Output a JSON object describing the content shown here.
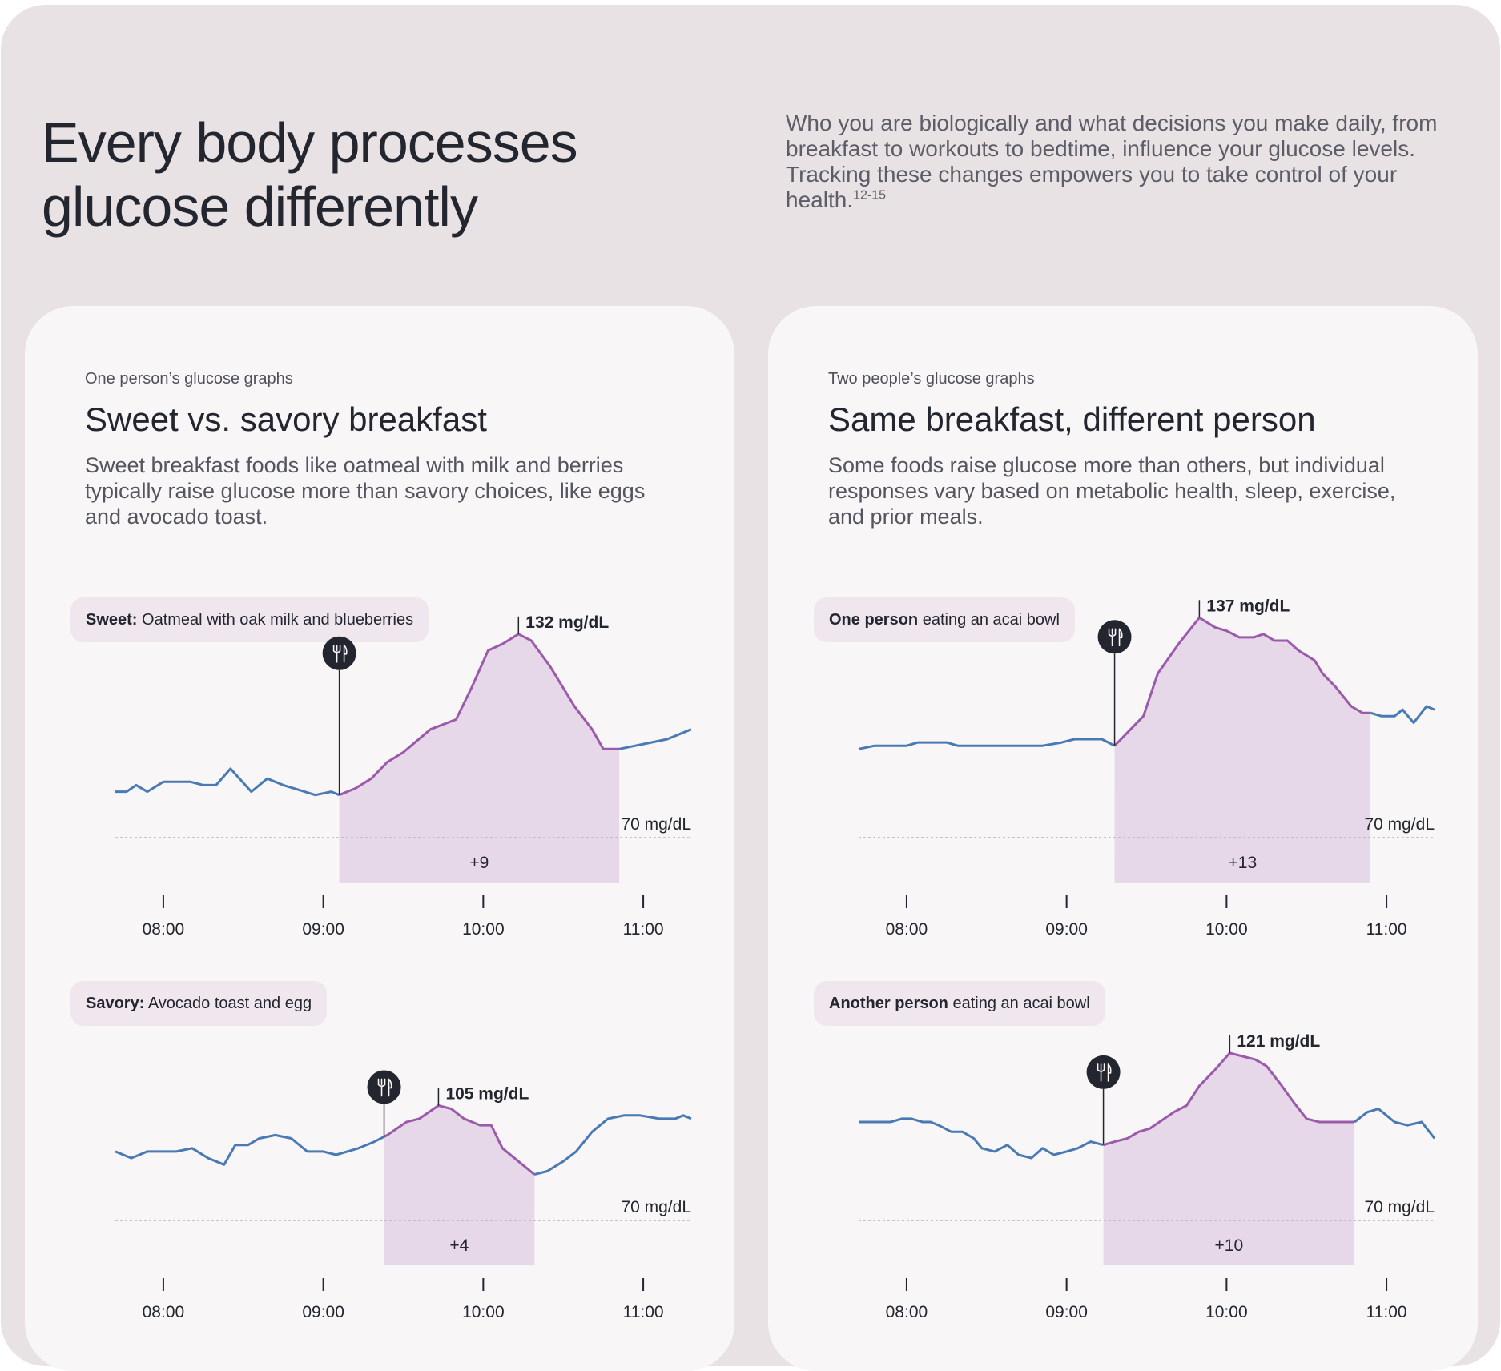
{
  "header": {
    "title_line1": "Every body processes",
    "title_line2": "glucose differently",
    "intro": "Who you are biologically and what decisions you make daily, from breakfast to workouts to bedtime, influence your glucose levels. Tracking these changes empowers you to take control of your health.",
    "intro_ref": "12-15"
  },
  "left_card": {
    "eyebrow": "One person’s glucose graphs",
    "title": "Sweet vs. savory breakfast",
    "description": "Sweet breakfast foods like oatmeal with milk and berries typically raise glucose more than savory choices, like eggs and avocado toast.",
    "chip_top": {
      "bold": "Sweet:",
      "text": " Oatmeal with oak milk and blueberries"
    },
    "chip_bottom": {
      "bold": "Savory:",
      "text": " Avocado toast and egg"
    }
  },
  "right_card": {
    "eyebrow": "Two people’s glucose graphs",
    "title": "Same breakfast, different person",
    "description": "Some foods raise glucose more than others, but individual responses vary based on metabolic health, sleep, exercise, and prior meals.",
    "chip_top": {
      "bold": "One person",
      "text": " eating an acai bowl"
    },
    "chip_bottom": {
      "bold": "Another person",
      "text": " eating an acai bowl"
    }
  },
  "colors": {
    "baseline_line": "#4a7ab3",
    "response_line": "#9b5aaa",
    "response_fill": "#e6d8e8",
    "marker": "#23252f"
  },
  "chart_data": [
    {
      "type": "line",
      "card": "left",
      "name": "sweet",
      "xlim": [
        7.7,
        11.3
      ],
      "ylim": [
        62,
        140
      ],
      "x_ticks": [
        8,
        9,
        10,
        11
      ],
      "x_tick_labels": [
        "08:00",
        "09:00",
        "10:00",
        "11:00"
      ],
      "reference_line": {
        "y": 70,
        "label": "70 mg/dL"
      },
      "meal_time": 9.1,
      "response_window": [
        9.1,
        10.85
      ],
      "peak": {
        "x": 10.22,
        "y": 132,
        "label": "132 mg/dL"
      },
      "area_label": "+9",
      "points": [
        [
          7.7,
          84
        ],
        [
          7.77,
          84
        ],
        [
          7.83,
          86
        ],
        [
          7.9,
          84
        ],
        [
          8.0,
          87
        ],
        [
          8.17,
          87
        ],
        [
          8.25,
          86
        ],
        [
          8.33,
          86
        ],
        [
          8.42,
          91
        ],
        [
          8.55,
          84
        ],
        [
          8.65,
          88
        ],
        [
          8.75,
          86
        ],
        [
          8.95,
          83
        ],
        [
          9.05,
          84
        ],
        [
          9.1,
          83
        ],
        [
          9.2,
          85
        ],
        [
          9.3,
          88
        ],
        [
          9.4,
          93
        ],
        [
          9.5,
          96
        ],
        [
          9.67,
          103
        ],
        [
          9.83,
          106
        ],
        [
          9.93,
          116
        ],
        [
          10.03,
          127
        ],
        [
          10.12,
          129
        ],
        [
          10.22,
          132
        ],
        [
          10.3,
          130
        ],
        [
          10.42,
          122
        ],
        [
          10.57,
          110
        ],
        [
          10.68,
          103
        ],
        [
          10.75,
          97
        ],
        [
          10.85,
          97
        ],
        [
          10.95,
          98
        ],
        [
          11.05,
          99
        ],
        [
          11.15,
          100
        ],
        [
          11.3,
          103
        ]
      ]
    },
    {
      "type": "line",
      "card": "left",
      "name": "savory",
      "xlim": [
        7.7,
        11.3
      ],
      "ylim": [
        62,
        140
      ],
      "x_ticks": [
        8,
        9,
        10,
        11
      ],
      "x_tick_labels": [
        "08:00",
        "09:00",
        "10:00",
        "11:00"
      ],
      "reference_line": {
        "y": 70,
        "label": "70 mg/dL"
      },
      "meal_time": 9.38,
      "response_window": [
        9.38,
        10.32
      ],
      "peak": {
        "x": 9.72,
        "y": 105,
        "label": "105 mg/dL"
      },
      "area_label": "+4",
      "points": [
        [
          7.7,
          91
        ],
        [
          7.8,
          89
        ],
        [
          7.9,
          91
        ],
        [
          8.0,
          91
        ],
        [
          8.08,
          91
        ],
        [
          8.18,
          92
        ],
        [
          8.28,
          89
        ],
        [
          8.38,
          87
        ],
        [
          8.45,
          93
        ],
        [
          8.53,
          93
        ],
        [
          8.6,
          95
        ],
        [
          8.7,
          96
        ],
        [
          8.8,
          95
        ],
        [
          8.9,
          91
        ],
        [
          9.0,
          91
        ],
        [
          9.08,
          90
        ],
        [
          9.15,
          91
        ],
        [
          9.22,
          92
        ],
        [
          9.32,
          94
        ],
        [
          9.4,
          96
        ],
        [
          9.52,
          100
        ],
        [
          9.6,
          101
        ],
        [
          9.72,
          105
        ],
        [
          9.8,
          104
        ],
        [
          9.88,
          101
        ],
        [
          9.98,
          99
        ],
        [
          10.05,
          99
        ],
        [
          10.12,
          92
        ],
        [
          10.22,
          88
        ],
        [
          10.32,
          84
        ],
        [
          10.4,
          85
        ],
        [
          10.5,
          88
        ],
        [
          10.58,
          91
        ],
        [
          10.68,
          97
        ],
        [
          10.78,
          101
        ],
        [
          10.88,
          102
        ],
        [
          10.98,
          102
        ],
        [
          11.1,
          101
        ],
        [
          11.2,
          101
        ],
        [
          11.25,
          102
        ],
        [
          11.3,
          101
        ]
      ]
    },
    {
      "type": "line",
      "card": "right",
      "name": "person_one",
      "xlim": [
        7.7,
        11.3
      ],
      "ylim": [
        62,
        140
      ],
      "x_ticks": [
        8,
        9,
        10,
        11
      ],
      "x_tick_labels": [
        "08:00",
        "09:00",
        "10:00",
        "11:00"
      ],
      "reference_line": {
        "y": 70,
        "label": "70 mg/dL"
      },
      "meal_time": 9.3,
      "response_window": [
        9.3,
        10.9
      ],
      "peak": {
        "x": 9.83,
        "y": 137,
        "label": "137 mg/dL"
      },
      "area_label": "+13",
      "points": [
        [
          7.7,
          97
        ],
        [
          7.8,
          98
        ],
        [
          7.9,
          98
        ],
        [
          8.0,
          98
        ],
        [
          8.07,
          99
        ],
        [
          8.25,
          99
        ],
        [
          8.32,
          98
        ],
        [
          8.38,
          98
        ],
        [
          8.43,
          98
        ],
        [
          8.5,
          98
        ],
        [
          8.6,
          98
        ],
        [
          8.65,
          98
        ],
        [
          8.75,
          98
        ],
        [
          8.85,
          98
        ],
        [
          8.97,
          99
        ],
        [
          9.05,
          100
        ],
        [
          9.15,
          100
        ],
        [
          9.22,
          100
        ],
        [
          9.3,
          98
        ],
        [
          9.38,
          102
        ],
        [
          9.48,
          107
        ],
        [
          9.57,
          120
        ],
        [
          9.7,
          129
        ],
        [
          9.83,
          137
        ],
        [
          9.93,
          134
        ],
        [
          10.0,
          133
        ],
        [
          10.08,
          131
        ],
        [
          10.17,
          131
        ],
        [
          10.23,
          132
        ],
        [
          10.3,
          130
        ],
        [
          10.38,
          130
        ],
        [
          10.45,
          127
        ],
        [
          10.55,
          124
        ],
        [
          10.6,
          120
        ],
        [
          10.68,
          116
        ],
        [
          10.78,
          110
        ],
        [
          10.85,
          108
        ],
        [
          10.9,
          108
        ],
        [
          10.97,
          107
        ],
        [
          11.05,
          107
        ],
        [
          11.1,
          109
        ],
        [
          11.17,
          105
        ],
        [
          11.25,
          110
        ],
        [
          11.3,
          109
        ]
      ]
    },
    {
      "type": "line",
      "card": "right",
      "name": "person_two",
      "xlim": [
        7.7,
        11.3
      ],
      "ylim": [
        62,
        140
      ],
      "x_ticks": [
        8,
        9,
        10,
        11
      ],
      "x_tick_labels": [
        "08:00",
        "09:00",
        "10:00",
        "11:00"
      ],
      "reference_line": {
        "y": 70,
        "label": "70 mg/dL"
      },
      "meal_time": 9.23,
      "response_window": [
        9.23,
        10.8
      ],
      "peak": {
        "x": 10.02,
        "y": 121,
        "label": "121 mg/dL"
      },
      "area_label": "+10",
      "points": [
        [
          7.7,
          100
        ],
        [
          7.8,
          100
        ],
        [
          7.9,
          100
        ],
        [
          7.97,
          101
        ],
        [
          8.03,
          101
        ],
        [
          8.1,
          100
        ],
        [
          8.15,
          100
        ],
        [
          8.2,
          99
        ],
        [
          8.28,
          97
        ],
        [
          8.35,
          97
        ],
        [
          8.42,
          95
        ],
        [
          8.47,
          92
        ],
        [
          8.55,
          91
        ],
        [
          8.63,
          93
        ],
        [
          8.7,
          90
        ],
        [
          8.78,
          89
        ],
        [
          8.85,
          92
        ],
        [
          8.92,
          90
        ],
        [
          9.0,
          91
        ],
        [
          9.07,
          92
        ],
        [
          9.15,
          94
        ],
        [
          9.23,
          93
        ],
        [
          9.3,
          94
        ],
        [
          9.38,
          95
        ],
        [
          9.45,
          97
        ],
        [
          9.52,
          98
        ],
        [
          9.58,
          100
        ],
        [
          9.67,
          103
        ],
        [
          9.75,
          105
        ],
        [
          9.83,
          111
        ],
        [
          9.93,
          116
        ],
        [
          10.02,
          121
        ],
        [
          10.1,
          120
        ],
        [
          10.18,
          119
        ],
        [
          10.25,
          117
        ],
        [
          10.33,
          112
        ],
        [
          10.42,
          106
        ],
        [
          10.5,
          101
        ],
        [
          10.58,
          100
        ],
        [
          10.7,
          100
        ],
        [
          10.8,
          100
        ],
        [
          10.88,
          103
        ],
        [
          10.95,
          104
        ],
        [
          11.05,
          100
        ],
        [
          11.13,
          99
        ],
        [
          11.22,
          100
        ],
        [
          11.3,
          95
        ]
      ]
    }
  ]
}
